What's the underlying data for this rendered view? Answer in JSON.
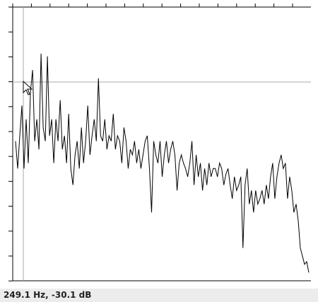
{
  "chart_data": {
    "type": "line",
    "color": "#000000",
    "ylim": [
      0,
      100
    ],
    "values": [
      51,
      41,
      53,
      64,
      41,
      59,
      43,
      69,
      77,
      51,
      59,
      48,
      83,
      56,
      51,
      82,
      53,
      59,
      43,
      59,
      51,
      66,
      48,
      53,
      43,
      61,
      41,
      35,
      46,
      51,
      41,
      56,
      43,
      51,
      64,
      46,
      53,
      59,
      51,
      74,
      53,
      51,
      59,
      48,
      53,
      51,
      61,
      48,
      53,
      51,
      43,
      56,
      51,
      41,
      48,
      46,
      51,
      43,
      48,
      41,
      46,
      51,
      53,
      41,
      25,
      51,
      46,
      43,
      51,
      38,
      46,
      51,
      43,
      48,
      51,
      46,
      33,
      43,
      46,
      43,
      41,
      38,
      43,
      51,
      35,
      46,
      38,
      43,
      33,
      41,
      35,
      43,
      38,
      41,
      41,
      38,
      43,
      41,
      35,
      39,
      41,
      35,
      30,
      38,
      33,
      35,
      38,
      12,
      35,
      41,
      28,
      33,
      25,
      33,
      28,
      30,
      33,
      28,
      35,
      30,
      38,
      43,
      30,
      38,
      43,
      46,
      41,
      43,
      30,
      38,
      33,
      25,
      28,
      22,
      12,
      9,
      6,
      7,
      3
    ]
  },
  "status_bar": {
    "text": "249.1 Hz, -30.1 dB"
  }
}
